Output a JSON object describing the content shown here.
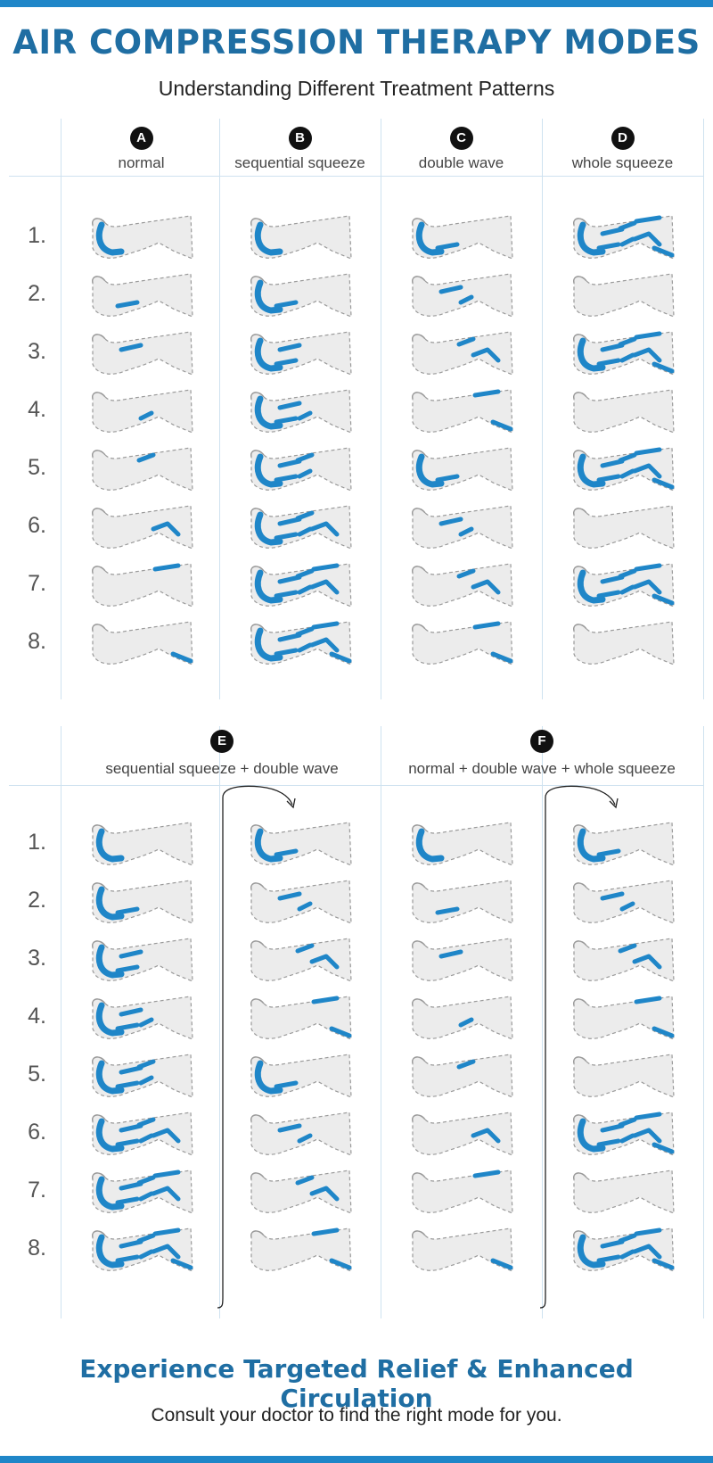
{
  "header": {
    "title": "AIR COMPRESSION THERAPY MODES",
    "subtitle": "Understanding Different Treatment Patterns"
  },
  "footer": {
    "title": "Experience Targeted Relief & Enhanced Circulation",
    "subtitle": "Consult your doctor to find the right mode for you."
  },
  "colors": {
    "accent": "#1f86c8",
    "title": "#1f6ea3",
    "leg_fill": "#ececec",
    "leg_outline": "#9a9a9a"
  },
  "row_labels": [
    "1.",
    "2.",
    "3.",
    "4.",
    "5.",
    "6.",
    "7.",
    "8."
  ],
  "modes_top": [
    {
      "letter": "A",
      "label": "normal",
      "active": [
        [
          0
        ],
        [
          1
        ],
        [
          2
        ],
        [
          3
        ],
        [
          4
        ],
        [
          5
        ],
        [
          6
        ],
        [
          7
        ]
      ]
    },
    {
      "letter": "B",
      "label": "sequential squeeze",
      "active": [
        [
          0
        ],
        [
          0,
          1
        ],
        [
          0,
          1,
          2
        ],
        [
          0,
          1,
          2,
          3
        ],
        [
          0,
          1,
          2,
          3,
          4
        ],
        [
          0,
          1,
          2,
          3,
          4,
          5
        ],
        [
          0,
          1,
          2,
          3,
          4,
          5,
          6
        ],
        [
          0,
          1,
          2,
          3,
          4,
          5,
          6,
          7
        ]
      ]
    },
    {
      "letter": "C",
      "label": "double wave",
      "active": [
        [
          0,
          1
        ],
        [
          2,
          3
        ],
        [
          4,
          5
        ],
        [
          6,
          7
        ],
        [
          0,
          1
        ],
        [
          2,
          3
        ],
        [
          4,
          5
        ],
        [
          6,
          7
        ]
      ]
    },
    {
      "letter": "D",
      "label": "whole squeeze",
      "active": [
        [
          0,
          1,
          2,
          3,
          4,
          5,
          6,
          7
        ],
        [],
        [
          0,
          1,
          2,
          3,
          4,
          5,
          6,
          7
        ],
        [],
        [
          0,
          1,
          2,
          3,
          4,
          5,
          6,
          7
        ],
        [],
        [
          0,
          1,
          2,
          3,
          4,
          5,
          6,
          7
        ],
        []
      ]
    }
  ],
  "modes_bottom": [
    {
      "letter": "E",
      "label": "sequential squeeze + double wave",
      "columns": [
        [
          [
            0
          ],
          [
            0,
            1
          ],
          [
            0,
            1,
            2
          ],
          [
            0,
            1,
            2,
            3
          ],
          [
            0,
            1,
            2,
            3,
            4
          ],
          [
            0,
            1,
            2,
            3,
            4,
            5
          ],
          [
            0,
            1,
            2,
            3,
            4,
            5,
            6
          ],
          [
            0,
            1,
            2,
            3,
            4,
            5,
            6,
            7
          ]
        ],
        [
          [
            0,
            1
          ],
          [
            2,
            3
          ],
          [
            4,
            5
          ],
          [
            6,
            7
          ],
          [
            0,
            1
          ],
          [
            2,
            3
          ],
          [
            4,
            5
          ],
          [
            6,
            7
          ]
        ]
      ]
    },
    {
      "letter": "F",
      "label": "normal + double wave + whole squeeze",
      "columns": [
        [
          [
            0
          ],
          [
            1
          ],
          [
            2
          ],
          [
            3
          ],
          [
            4
          ],
          [
            5
          ],
          [
            6
          ],
          [
            7
          ]
        ],
        [
          [
            0,
            1
          ],
          [
            2,
            3
          ],
          [
            4,
            5
          ],
          [
            6,
            7
          ],
          [],
          [
            0,
            1,
            2,
            3,
            4,
            5,
            6,
            7
          ],
          [],
          [
            0,
            1,
            2,
            3,
            4,
            5,
            6,
            7
          ]
        ]
      ]
    }
  ]
}
